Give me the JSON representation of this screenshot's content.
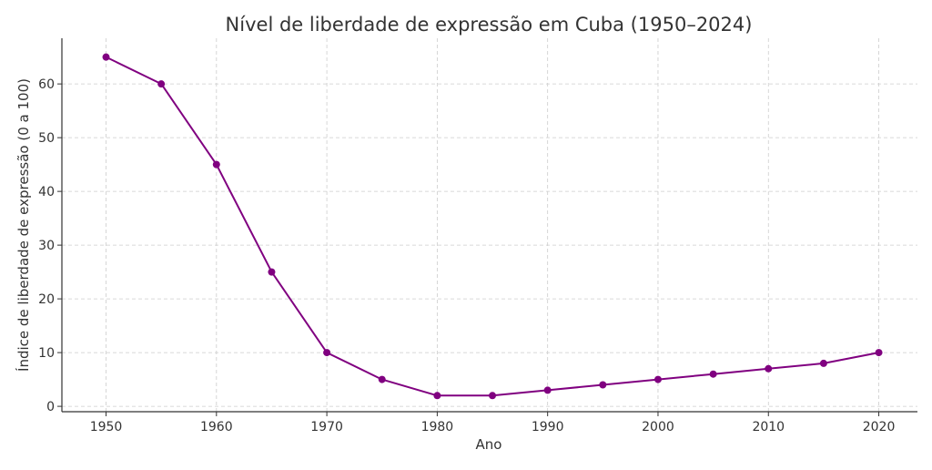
{
  "chart_data": {
    "type": "line",
    "title": "Nível de liberdade de expressão em Cuba (1950–2024)",
    "xlabel": "Ano",
    "ylabel": "Índice de liberdade de expressão (0 a 100)",
    "x": [
      1950,
      1955,
      1960,
      1965,
      1970,
      1975,
      1980,
      1985,
      1990,
      1995,
      2000,
      2005,
      2010,
      2015,
      2020
    ],
    "series": [
      {
        "name": "",
        "values": [
          65,
          60,
          45,
          25,
          10,
          5,
          2,
          2,
          3,
          4,
          5,
          6,
          7,
          8,
          10
        ],
        "color": "#800080"
      }
    ],
    "xticks": [
      1950,
      1960,
      1970,
      1980,
      1990,
      2000,
      2010,
      2020
    ],
    "yticks": [
      0,
      10,
      20,
      30,
      40,
      50,
      60
    ],
    "xlim": [
      1946,
      2023.5
    ],
    "ylim": [
      -1,
      68.5
    ],
    "grid": true,
    "marker": "circle"
  }
}
